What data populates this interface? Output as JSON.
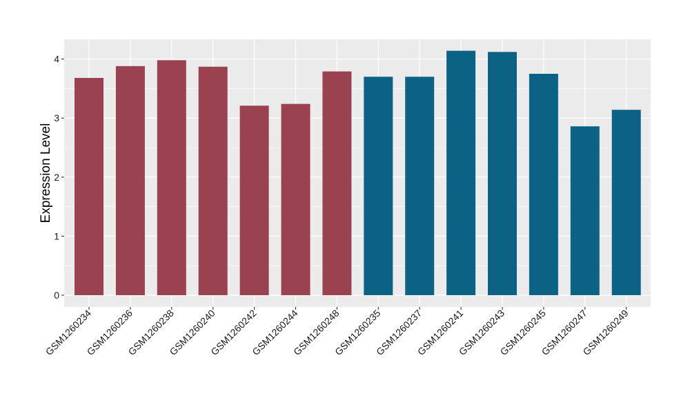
{
  "chart_data": {
    "type": "bar",
    "ylabel": "Expression Level",
    "xlabel": "",
    "ylim": [
      0,
      4.35
    ],
    "yticks": [
      0,
      1,
      2,
      3,
      4
    ],
    "grid": true,
    "categories": [
      "GSM1260234",
      "GSM1260236",
      "GSM1260238",
      "GSM1260240",
      "GSM1260242",
      "GSM1260244",
      "GSM1260248",
      "GSM1260235",
      "GSM1260237",
      "GSM1260241",
      "GSM1260243",
      "GSM1260245",
      "GSM1260247",
      "GSM1260249"
    ],
    "values": [
      3.68,
      3.88,
      3.98,
      3.87,
      3.21,
      3.24,
      3.79,
      3.7,
      3.7,
      4.14,
      4.12,
      3.75,
      2.86,
      3.14
    ],
    "groups": [
      "a",
      "a",
      "a",
      "a",
      "a",
      "a",
      "a",
      "b",
      "b",
      "b",
      "b",
      "b",
      "b",
      "b"
    ],
    "group_colors": {
      "a": "#9a4250",
      "b": "#0b6285"
    },
    "panel_background": "#ebebeb",
    "grid_color": "#ffffff"
  }
}
